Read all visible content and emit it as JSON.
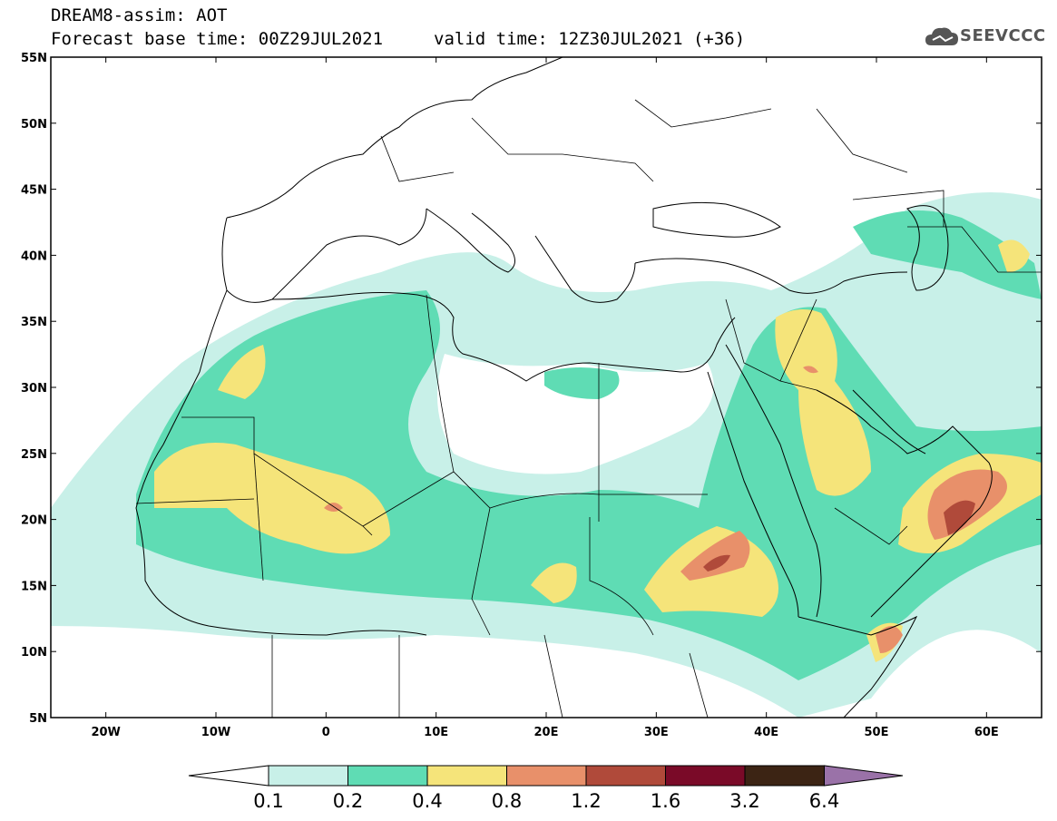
{
  "header": {
    "title": "DREAM8-assim: AOT",
    "base_time": "Forecast base time: 00Z29JUL2021",
    "valid_time": "valid time: 12Z30JUL2021 (+36)"
  },
  "logo": {
    "name": "SEEVCCC",
    "icon": "cloud-icon"
  },
  "map": {
    "lat_labels": [
      "55N",
      "50N",
      "45N",
      "40N",
      "35N",
      "30N",
      "25N",
      "20N",
      "15N",
      "10N",
      "5N"
    ],
    "lon_labels": [
      "20W",
      "10W",
      "0",
      "10E",
      "20E",
      "30E",
      "40E",
      "50E",
      "60E"
    ],
    "extent": {
      "lon_min": -25,
      "lon_max": 65,
      "lat_min": 5,
      "lat_max": 55
    }
  },
  "colorbar": {
    "levels": [
      "0.1",
      "0.2",
      "0.4",
      "0.8",
      "1.2",
      "1.6",
      "3.2",
      "6.4"
    ],
    "colors": [
      "#ffffff",
      "#c8f0e8",
      "#5fdcb4",
      "#f5e47a",
      "#e8906a",
      "#b04a3a",
      "#7a0a28",
      "#3c2414",
      "#9a72a8"
    ]
  }
}
